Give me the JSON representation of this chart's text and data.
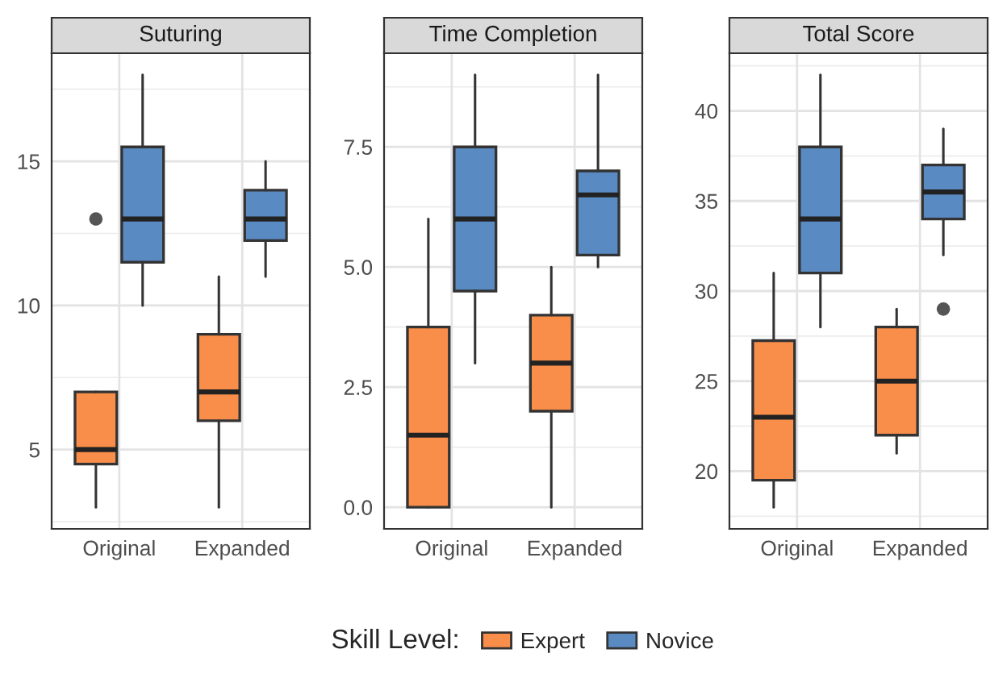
{
  "chart_data": [
    {
      "type": "box",
      "title": "Suturing",
      "categories": [
        "Original",
        "Expanded"
      ],
      "ylim": [
        2.25,
        18.75
      ],
      "yticks": [
        5,
        10,
        15
      ],
      "grid": true,
      "legend": "bottom",
      "legend_title": "Skill Level:",
      "series": [
        {
          "name": "Expert",
          "color": "#f98e4a",
          "boxes": [
            {
              "low": 3,
              "q1": 4.5,
              "median": 5,
              "q3": 7,
              "high": 7,
              "outliers": [
                13
              ]
            },
            {
              "low": 3,
              "q1": 6,
              "median": 7,
              "q3": 9,
              "high": 11
            }
          ]
        },
        {
          "name": "Novice",
          "color": "#5a8ac2",
          "boxes": [
            {
              "low": 10,
              "q1": 11.5,
              "median": 13,
              "q3": 15.5,
              "high": 18
            },
            {
              "low": 11,
              "q1": 12.25,
              "median": 13,
              "q3": 14,
              "high": 15
            }
          ]
        }
      ]
    },
    {
      "type": "box",
      "title": "Time Completion",
      "categories": [
        "Original",
        "Expanded"
      ],
      "ylim": [
        -0.45,
        9.45
      ],
      "yticks": [
        {
          "value": 0,
          "label": "0.0"
        },
        {
          "value": 2.5,
          "label": "2.5"
        },
        {
          "value": 5,
          "label": "5.0"
        },
        {
          "value": 7.5,
          "label": "7.5"
        }
      ],
      "grid": true,
      "series": [
        {
          "name": "Expert",
          "color": "#f98e4a",
          "boxes": [
            {
              "low": 0,
              "q1": 0,
              "median": 1.5,
              "q3": 3.75,
              "high": 6
            },
            {
              "low": 0,
              "q1": 2,
              "median": 3,
              "q3": 4,
              "high": 5
            }
          ]
        },
        {
          "name": "Novice",
          "color": "#5a8ac2",
          "boxes": [
            {
              "low": 3,
              "q1": 4.5,
              "median": 6,
              "q3": 7.5,
              "high": 9
            },
            {
              "low": 5,
              "q1": 5.25,
              "median": 6.5,
              "q3": 7,
              "high": 9
            }
          ]
        }
      ]
    },
    {
      "type": "box",
      "title": "Total Score",
      "categories": [
        "Original",
        "Expanded"
      ],
      "ylim": [
        16.8,
        43.2
      ],
      "yticks": [
        20,
        25,
        30,
        35,
        40
      ],
      "grid": true,
      "series": [
        {
          "name": "Expert",
          "color": "#f98e4a",
          "boxes": [
            {
              "low": 18,
              "q1": 19.5,
              "median": 23,
              "q3": 27.25,
              "high": 31
            },
            {
              "low": 21,
              "q1": 22,
              "median": 25,
              "q3": 28,
              "high": 29
            }
          ]
        },
        {
          "name": "Novice",
          "color": "#5a8ac2",
          "boxes": [
            {
              "low": 28,
              "q1": 31,
              "median": 34,
              "q3": 38,
              "high": 42
            },
            {
              "low": 32,
              "q1": 34,
              "median": 35.5,
              "q3": 37,
              "high": 39,
              "outliers": [
                29
              ]
            }
          ]
        }
      ]
    }
  ]
}
